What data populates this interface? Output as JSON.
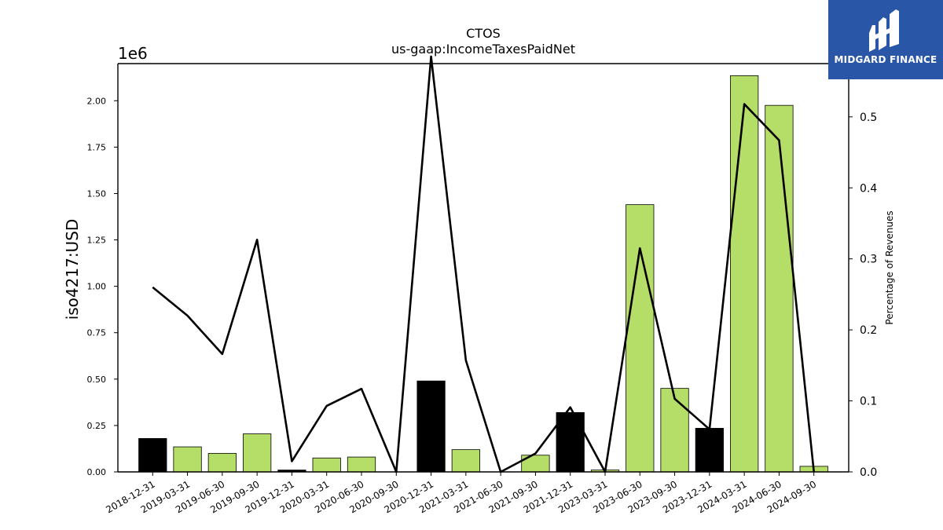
{
  "chart_data": {
    "type": "bar",
    "title": "CTOS",
    "subtitle": "us-gaap:IncomeTaxesPaidNet",
    "ylabel": "iso4217:USD",
    "y2label": "Percentage of Revenues",
    "y_offset_label": "1e6",
    "ylim": [
      0,
      2.2
    ],
    "y2lim": [
      0,
      0.575
    ],
    "y_ticks": [
      "0.00",
      "0.25",
      "0.50",
      "0.75",
      "1.00",
      "1.25",
      "1.50",
      "1.75",
      "2.00"
    ],
    "y2_ticks": [
      "0.0",
      "0.1",
      "0.2",
      "0.3",
      "0.4",
      "0.5"
    ],
    "categories": [
      "2018-12-31",
      "2019-03-31",
      "2019-06-30",
      "2019-09-30",
      "2019-12-31",
      "2020-03-31",
      "2020-06-30",
      "2020-09-30",
      "2020-12-31",
      "2021-03-31",
      "2021-06-30",
      "2021-09-30",
      "2021-12-31",
      "2023-03-31",
      "2023-06-30",
      "2023-09-30",
      "2023-12-31",
      "2024-03-31",
      "2024-06-30",
      "2024-09-30"
    ],
    "series": [
      {
        "kind": "bar",
        "values": [
          0.18,
          0.135,
          0.1,
          0.205,
          0.01,
          0.075,
          0.08,
          0.0,
          0.49,
          0.12,
          0.0,
          0.09,
          0.32,
          0.01,
          1.44,
          0.45,
          0.235,
          2.135,
          1.975,
          0.03
        ],
        "colors": [
          "#000000",
          "#b5de68",
          "#b5de68",
          "#b5de68",
          "#000000",
          "#b5de68",
          "#b5de68",
          "#b5de68",
          "#000000",
          "#b5de68",
          "#b5de68",
          "#b5de68",
          "#000000",
          "#b5de68",
          "#b5de68",
          "#b5de68",
          "#000000",
          "#b5de68",
          "#b5de68",
          "#b5de68"
        ]
      },
      {
        "kind": "line",
        "axis": "secondary",
        "values": [
          0.26,
          0.22,
          0.166,
          0.327,
          0.015,
          0.093,
          0.117,
          0.0,
          0.585,
          0.157,
          0.0,
          0.026,
          0.091,
          0.0,
          0.315,
          0.103,
          0.06,
          0.518,
          0.467,
          0.0
        ]
      }
    ],
    "grid": false
  },
  "logo": {
    "text": "MIDGARD FINANCE"
  }
}
